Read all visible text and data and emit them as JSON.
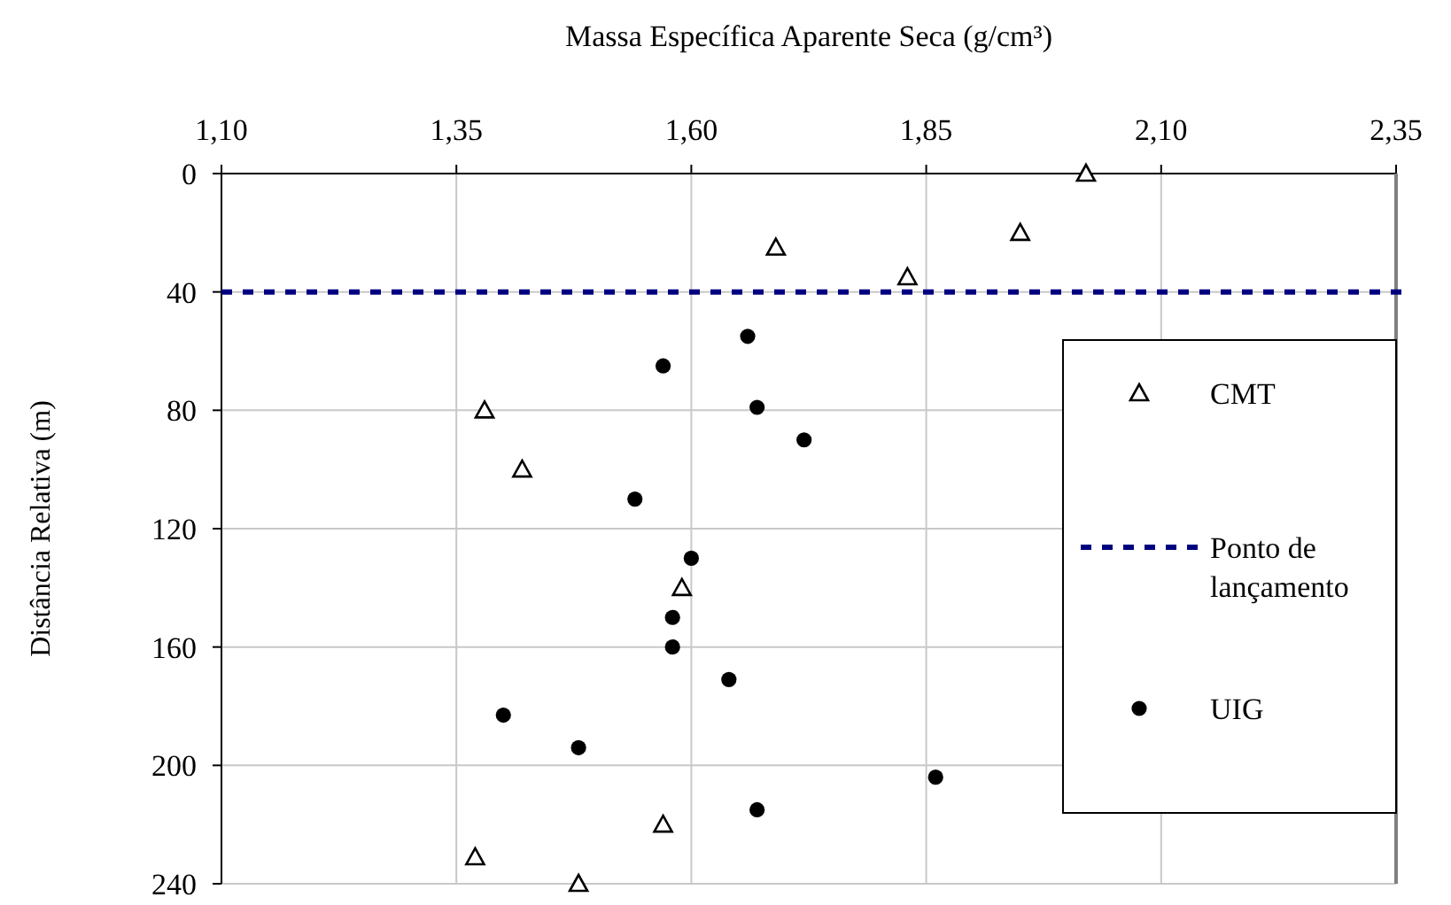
{
  "chart_data": {
    "type": "scatter",
    "xlabel": "Massa Específica Aparente Seca (g/cm³)",
    "ylabel": "Distância Relativa (m)",
    "xlim": [
      1.1,
      2.35
    ],
    "xticks": [
      {
        "value": 1.1,
        "label": "1,10"
      },
      {
        "value": 1.35,
        "label": "1,35"
      },
      {
        "value": 1.6,
        "label": "1,60"
      },
      {
        "value": 1.85,
        "label": "1,85"
      },
      {
        "value": 2.1,
        "label": "2,10"
      },
      {
        "value": 2.35,
        "label": "2,35"
      }
    ],
    "ylim": [
      240,
      0
    ],
    "yticks": [
      0,
      40,
      80,
      120,
      160,
      200,
      240
    ],
    "grid": true,
    "legend": "right",
    "series": [
      {
        "name": "CMT",
        "color": "#000000",
        "marker": "triangle",
        "x": [
          2.02,
          1.95,
          1.69,
          1.83,
          1.38,
          1.42,
          1.59,
          1.57,
          1.37,
          1.48
        ],
        "values": [
          0,
          20,
          25,
          35,
          80,
          100,
          140,
          220,
          231,
          240
        ]
      },
      {
        "name": "UIG",
        "color": "#000000",
        "marker": "circle",
        "x": [
          1.66,
          1.57,
          1.67,
          1.72,
          1.54,
          1.6,
          1.58,
          1.58,
          1.64,
          1.4,
          1.48,
          1.86,
          1.67
        ],
        "values": [
          55,
          65,
          79,
          90,
          110,
          130,
          150,
          160,
          171,
          183,
          194,
          204,
          215
        ]
      }
    ],
    "ref_lines": [
      {
        "axis": "y",
        "value": 40,
        "label": "Ponto de lançamento",
        "color": "#000080",
        "line_style": "dashed"
      }
    ]
  }
}
